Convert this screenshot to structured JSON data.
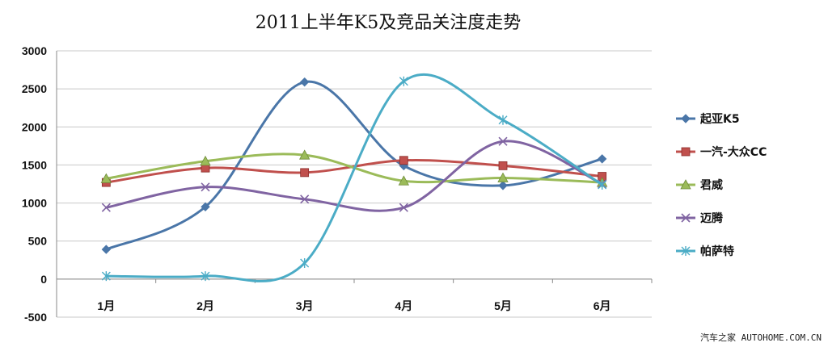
{
  "chart_data": {
    "type": "line",
    "title": "2011上半年K5及竞品关注度走势",
    "categories": [
      "1月",
      "2月",
      "3月",
      "4月",
      "5月",
      "6月"
    ],
    "ylim": [
      -500,
      3000
    ],
    "yticks": [
      -500,
      0,
      500,
      1000,
      1500,
      2000,
      2500,
      3000
    ],
    "grid": true,
    "legend_position": "right",
    "series": [
      {
        "name": "起亚K5",
        "color": "#4a76a8",
        "marker": "diamond",
        "values": [
          390,
          950,
          2590,
          1490,
          1230,
          1580
        ]
      },
      {
        "name": "一汽-大众CC",
        "color": "#c0504d",
        "marker": "square",
        "values": [
          1270,
          1460,
          1400,
          1560,
          1490,
          1350
        ]
      },
      {
        "name": "君威",
        "color": "#9bbb59",
        "marker": "triangle",
        "values": [
          1320,
          1550,
          1630,
          1290,
          1330,
          1270
        ]
      },
      {
        "name": "迈腾",
        "color": "#8064a2",
        "marker": "x",
        "values": [
          940,
          1210,
          1050,
          940,
          1810,
          1250
        ]
      },
      {
        "name": "帕萨特",
        "color": "#4bacc6",
        "marker": "star",
        "values": [
          40,
          40,
          210,
          2600,
          2090,
          1240
        ]
      }
    ]
  },
  "watermark": "汽车之家 AUTOHOME.COM.CN"
}
